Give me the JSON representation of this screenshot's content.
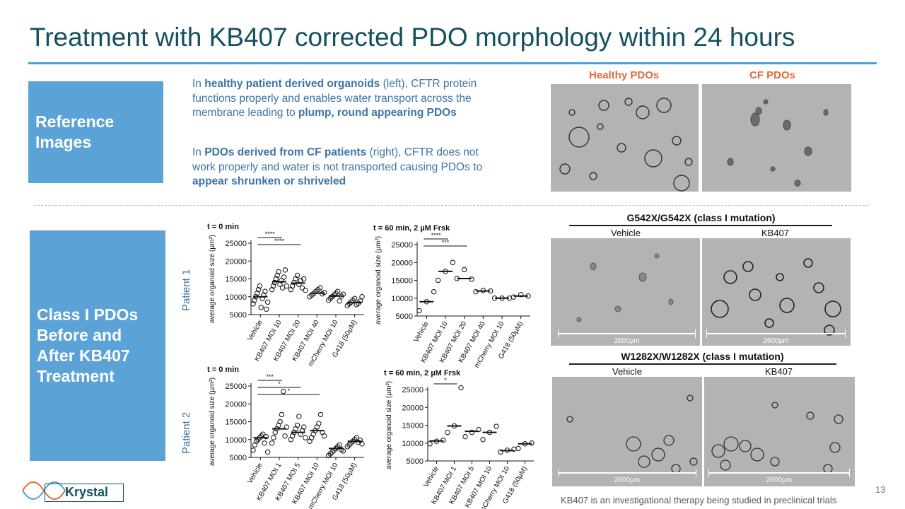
{
  "title": "Treatment with KB407 corrected PDO morphology within 24 hours",
  "sidebar": {
    "reference": "Reference Images",
    "classI": "Class I PDOs Before and After KB407 Treatment"
  },
  "para1": {
    "a": "In ",
    "b": "healthy patient derived organoids",
    "c": " (left), CFTR protein functions properly and enables water transport across the membrane leading to ",
    "d": "plump, round appearing PDOs"
  },
  "para2": {
    "a": "In ",
    "b": "PDOs derived from CF patients",
    "c": " (right), CFTR does not work properly and water is not transported causing PDOs to ",
    "d": "appear shrunken or shriveled"
  },
  "images": {
    "healthy_label": "Healthy PDOs",
    "cf_label": "CF PDOs",
    "mut1_title": "G542X/G542X (class I mutation)",
    "mut2_title": "W1282X/W1282X (class I mutation)",
    "vehicle": "Vehicle",
    "kb407": "KB407",
    "scale": "2600µm"
  },
  "patients": {
    "p1": "Patient 1",
    "p2": "Patient 2"
  },
  "footer": "KB407 is an investigational therapy being studied in preclinical trials",
  "page_number": "13",
  "logo": "Krystal",
  "colors": {
    "title": "#14505f",
    "accent": "#4aa0d4",
    "box": "#5ba3d6",
    "label_orange": "#e06a3a"
  },
  "chart_data": [
    {
      "type": "scatter",
      "title": "t = 0 min",
      "ylabel": "average organoid size (µm²)",
      "ylim": [
        5000,
        25000
      ],
      "yticks": [
        5000,
        10000,
        15000,
        20000,
        25000
      ],
      "categories": [
        "Vehicle",
        "KB407 MOI 10",
        "KB407 MOI 20",
        "KB407 MOI 40",
        "mCherry MOI 10",
        "G418 (50µM)"
      ],
      "means": [
        10000,
        14200,
        13800,
        11000,
        10200,
        8400
      ],
      "points": [
        [
          8000,
          9000,
          10000,
          11000,
          12000,
          13000,
          7000,
          9500,
          10500,
          11500,
          6500,
          8500
        ],
        [
          12000,
          13000,
          14000,
          15000,
          16000,
          17000,
          13500,
          14500,
          12500,
          15500,
          17500,
          13000
        ],
        [
          12000,
          13000,
          14000,
          15000,
          16000,
          13500,
          14500,
          12500,
          15000,
          11800
        ],
        [
          10000,
          10500,
          11000,
          11500,
          12000,
          12500,
          10800,
          11200
        ],
        [
          9000,
          9500,
          10000,
          10500,
          11000,
          11500,
          8800,
          10200,
          10700
        ],
        [
          7500,
          8000,
          8500,
          9000,
          9500,
          7800,
          8200,
          8800,
          10000
        ]
      ],
      "annotations": [
        {
          "from": 0,
          "to": 1,
          "label": "****"
        },
        {
          "from": 0,
          "to": 2,
          "label": "****"
        }
      ]
    },
    {
      "type": "scatter",
      "title": "t = 60 min, 2 µM Frsk",
      "ylabel": "average organoid size (µm²)",
      "ylim": [
        5000,
        25000
      ],
      "yticks": [
        5000,
        10000,
        15000,
        20000,
        25000
      ],
      "categories": [
        "Vehicle",
        "KB407 MOI 10",
        "KB407 MOI 20",
        "KB407 MOI 40",
        "mCherry MOI 10",
        "G418 (50µM)"
      ],
      "means": [
        9000,
        17500,
        15500,
        12000,
        10000,
        10600
      ],
      "points": [
        [
          6500,
          9000,
          11800
        ],
        [
          15000,
          17500,
          20000
        ],
        [
          15500,
          18000,
          15300
        ],
        [
          11800,
          12200,
          12000
        ],
        [
          10000,
          10000,
          10000
        ],
        [
          10300,
          11000,
          10600
        ]
      ],
      "annotations": [
        {
          "from": 0,
          "to": 1,
          "label": "****"
        },
        {
          "from": 0,
          "to": 2,
          "label": "***"
        }
      ]
    },
    {
      "type": "scatter",
      "title": "t = 0 min",
      "ylabel": "average organoid size (µm²)",
      "ylim": [
        5000,
        25000
      ],
      "yticks": [
        5000,
        10000,
        15000,
        20000,
        25000
      ],
      "categories": [
        "Vehicle",
        "KB407 MOI 1",
        "KB407 MOI 5",
        "KB407 MOI 10",
        "mCherry MOI 10",
        "G418 (50µM)"
      ],
      "means": [
        10500,
        13000,
        12000,
        12500,
        7500,
        9500
      ],
      "points": [
        [
          7000,
          8500,
          9500,
          10000,
          10500,
          11000,
          11500,
          9000,
          10800,
          6500
        ],
        [
          9000,
          10500,
          12000,
          13000,
          14000,
          15000,
          17000,
          23500,
          11000,
          13500
        ],
        [
          10000,
          11000,
          12000,
          13000,
          14000,
          16500,
          11500,
          12500,
          13500,
          10500
        ],
        [
          9500,
          10500,
          11500,
          12500,
          13500,
          14500,
          17000,
          12000,
          11000
        ],
        [
          5500,
          6000,
          6500,
          7000,
          7500,
          8000,
          8500,
          7200,
          6800
        ],
        [
          8000,
          8500,
          9000,
          9500,
          10000,
          10500,
          9200,
          9800,
          8800
        ]
      ],
      "annotations": [
        {
          "from": 0,
          "to": 1,
          "label": "***"
        },
        {
          "from": 0,
          "to": 2,
          "label": "*"
        },
        {
          "from": 0,
          "to": 3,
          "label": "*"
        }
      ]
    },
    {
      "type": "scatter",
      "title": "t = 60 min, 2 µM Frsk",
      "ylabel": "average organoid size (µm²)",
      "ylim": [
        5000,
        25000
      ],
      "yticks": [
        5000,
        10000,
        15000,
        20000,
        25000
      ],
      "categories": [
        "Vehicle",
        "KB407 MOI 1",
        "KB407 MOI 5",
        "KB407 MOI 10",
        "mCherry MOI 10",
        "G418 (50µM)"
      ],
      "means": [
        10600,
        14800,
        13300,
        13000,
        7900,
        9800
      ],
      "points": [
        [
          9800,
          10500,
          10800
        ],
        [
          13000,
          14800,
          25500
        ],
        [
          11800,
          13000,
          13800
        ],
        [
          11000,
          13000,
          14700
        ],
        [
          7500,
          8000,
          8300
        ],
        [
          8500,
          9800,
          10000
        ]
      ],
      "annotations": [
        {
          "from": 0,
          "to": 1,
          "label": "*"
        }
      ]
    }
  ]
}
